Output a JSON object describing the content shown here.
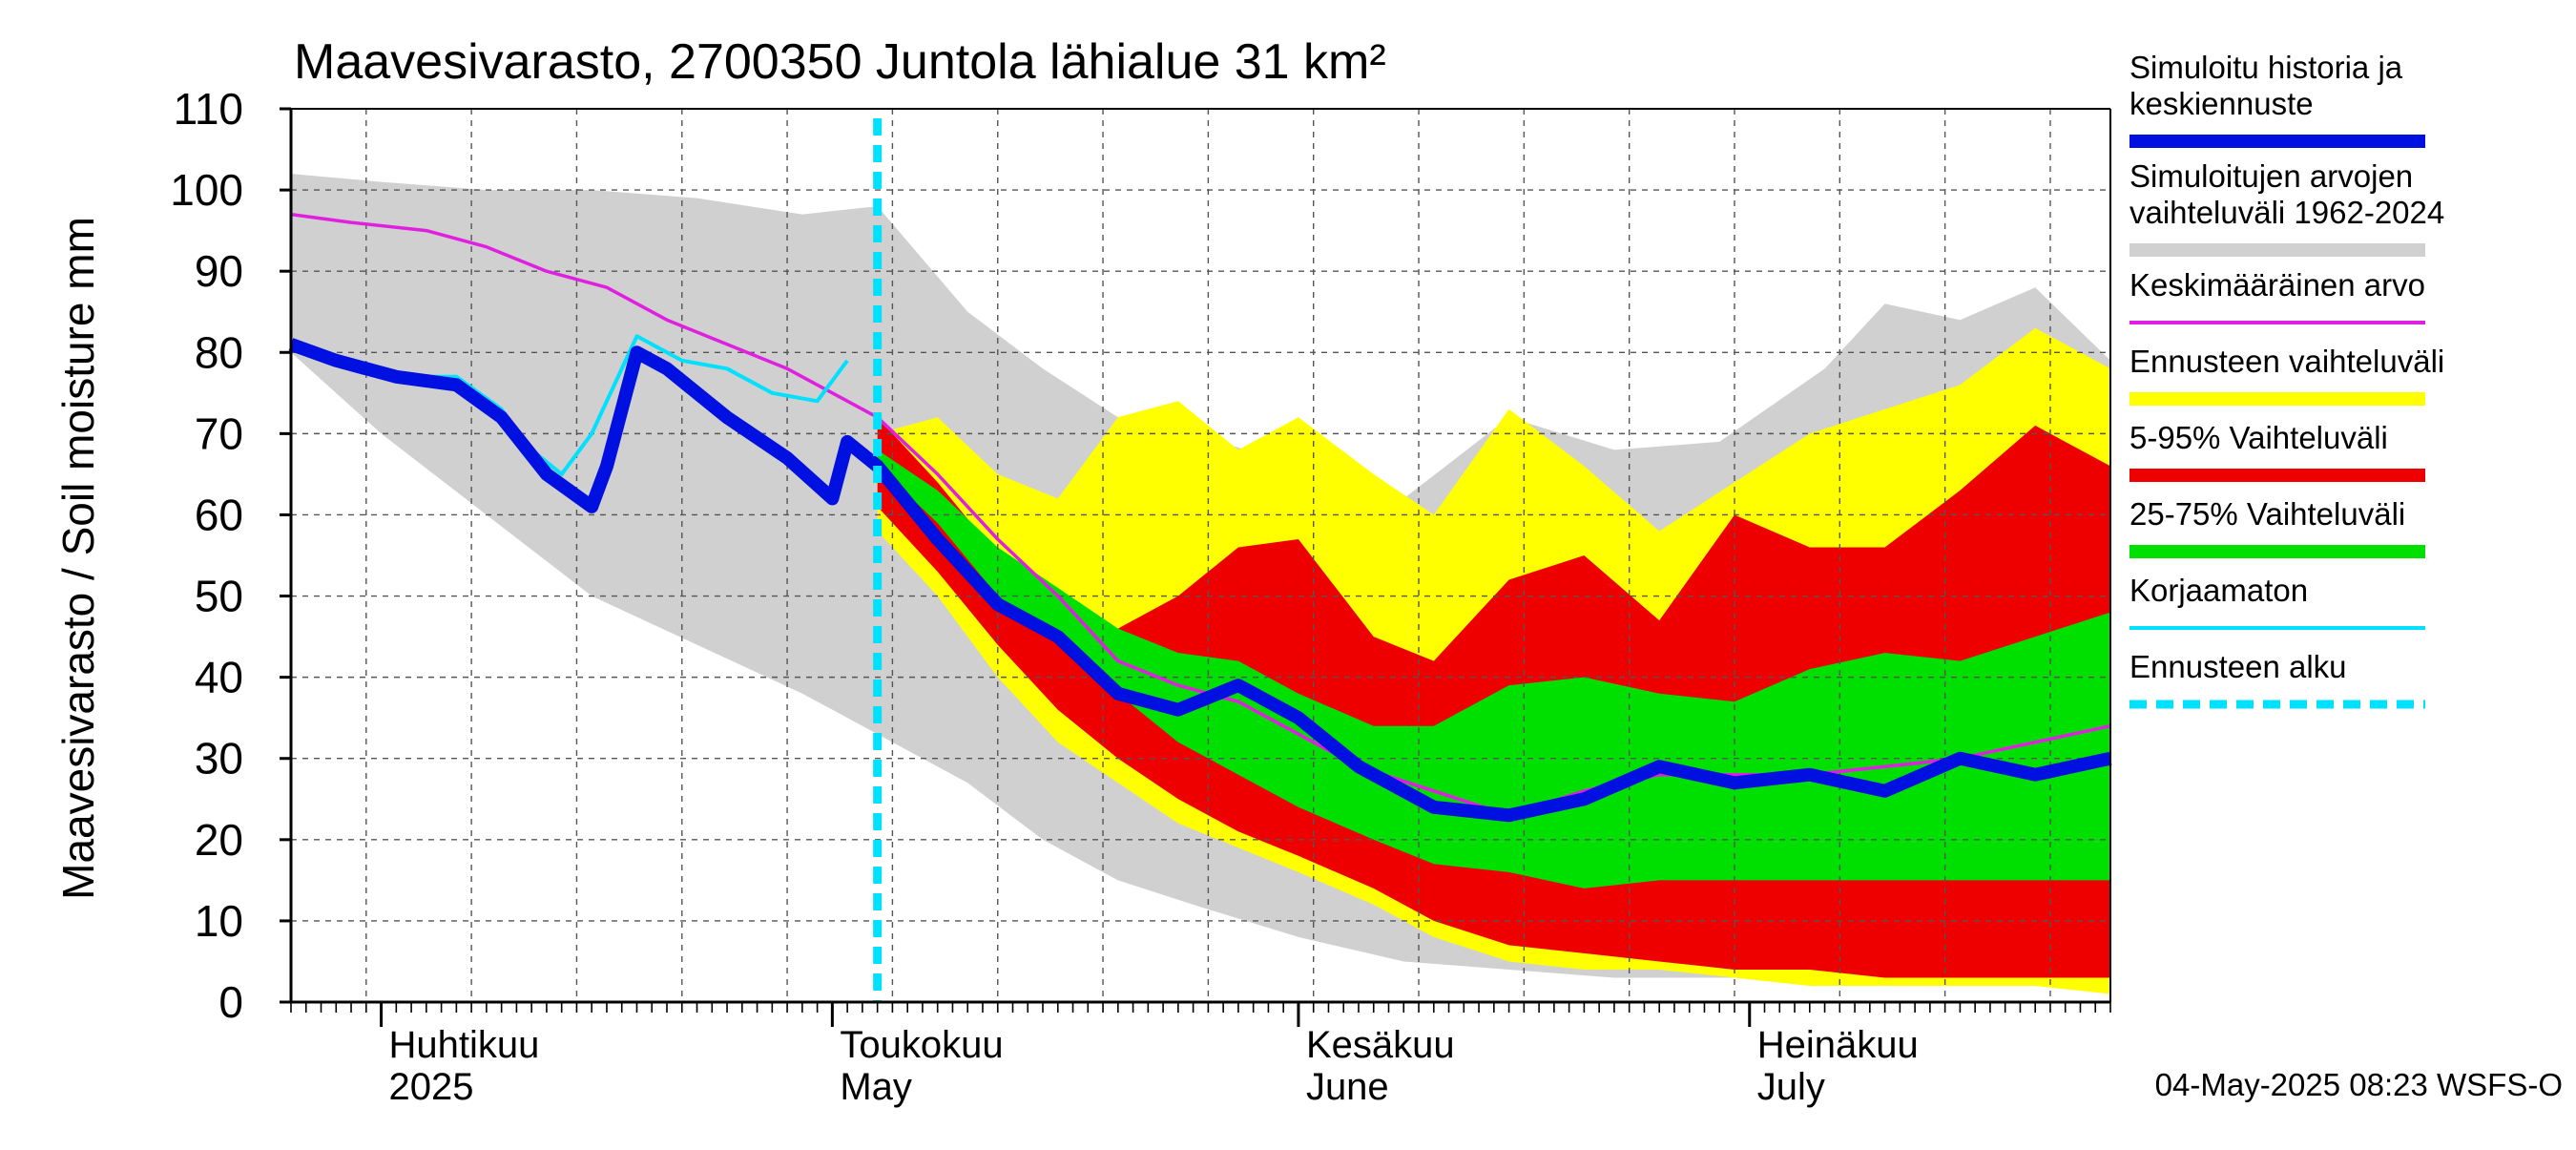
{
  "chart_data": {
    "type": "area",
    "title": "Maavesivarasto, 2700350 Juntola lähialue 31 km²",
    "ylabel": "Maavesivarasto / Soil moisture   mm",
    "ylim": [
      0,
      110
    ],
    "yticks": [
      0,
      10,
      20,
      30,
      40,
      50,
      60,
      70,
      80,
      90,
      100,
      110
    ],
    "xlim": [
      "2025-03-26",
      "2025-07-25"
    ],
    "grid": true,
    "legend_position": "right",
    "timestamp": "04-May-2025 08:23 WSFS-O",
    "x_labels": [
      {
        "date": "2025-04-01",
        "fi": "Huhtikuu",
        "en": "2025"
      },
      {
        "date": "2025-05-01",
        "fi": "Toukokuu",
        "en": "May"
      },
      {
        "date": "2025-06-01",
        "fi": "Kesäkuu",
        "en": "June"
      },
      {
        "date": "2025-07-01",
        "fi": "Heinäkuu",
        "en": "July"
      }
    ],
    "legend": [
      {
        "label": "Simuloitu historia ja keskiennuste",
        "color": "#0010e0",
        "style": "thick"
      },
      {
        "label": "Simuloitujen arvojen vaihteluväli 1962-2024",
        "color": "#d0d0d0",
        "style": "band"
      },
      {
        "label": "Keskimääräinen arvo",
        "color": "#e020e0",
        "style": "line"
      },
      {
        "label": "Ennusteen vaihteluväli",
        "color": "#ffff00",
        "style": "band"
      },
      {
        "label": "5-95% Vaihteluväli",
        "color": "#ee0000",
        "style": "band"
      },
      {
        "label": "25-75% Vaihteluväli",
        "color": "#00e000",
        "style": "band"
      },
      {
        "label": "Korjaamaton",
        "color": "#00e0ff",
        "style": "line"
      },
      {
        "label": "Ennusteen alku",
        "color": "#00e0ff",
        "style": "dashed"
      }
    ],
    "forecast_start": "2025-05-04",
    "series": [
      {
        "name": "Simuloitujen arvojen vaihteluväli 1962-2024",
        "kind": "band",
        "color": "#d0d0d0",
        "x": [
          "2025-03-26",
          "2025-04-01",
          "2025-04-08",
          "2025-04-15",
          "2025-04-22",
          "2025-04-29",
          "2025-05-04",
          "2025-05-10",
          "2025-05-15",
          "2025-05-20",
          "2025-05-25",
          "2025-06-01",
          "2025-06-08",
          "2025-06-15",
          "2025-06-22",
          "2025-06-29",
          "2025-07-06",
          "2025-07-10",
          "2025-07-15",
          "2025-07-20",
          "2025-07-25"
        ],
        "low": [
          80,
          70,
          60,
          50,
          44,
          38,
          33,
          27,
          20,
          15,
          12,
          8,
          5,
          4,
          3,
          3,
          3,
          3,
          3,
          3,
          3
        ],
        "high": [
          102,
          101,
          100,
          100,
          99,
          97,
          98,
          85,
          78,
          72,
          70,
          66,
          62,
          72,
          68,
          69,
          78,
          86,
          84,
          88,
          79
        ]
      },
      {
        "name": "Ennusteen vaihteluväli",
        "kind": "band",
        "color": "#ffff00",
        "x": [
          "2025-05-04",
          "2025-05-08",
          "2025-05-12",
          "2025-05-16",
          "2025-05-20",
          "2025-05-24",
          "2025-05-28",
          "2025-06-01",
          "2025-06-06",
          "2025-06-10",
          "2025-06-15",
          "2025-06-20",
          "2025-06-25",
          "2025-06-30",
          "2025-07-05",
          "2025-07-10",
          "2025-07-15",
          "2025-07-20",
          "2025-07-25"
        ],
        "low": [
          58,
          50,
          40,
          32,
          27,
          22,
          19,
          16,
          12,
          8,
          5,
          4,
          4,
          3,
          2,
          2,
          2,
          2,
          1
        ],
        "high": [
          70,
          72,
          65,
          62,
          72,
          74,
          68,
          72,
          65,
          60,
          73,
          66,
          58,
          64,
          70,
          73,
          76,
          83,
          78
        ]
      },
      {
        "name": "5-95% Vaihteluväli",
        "kind": "band",
        "color": "#ee0000",
        "x": [
          "2025-05-04",
          "2025-05-08",
          "2025-05-12",
          "2025-05-16",
          "2025-05-20",
          "2025-05-24",
          "2025-05-28",
          "2025-06-01",
          "2025-06-06",
          "2025-06-10",
          "2025-06-15",
          "2025-06-20",
          "2025-06-25",
          "2025-06-30",
          "2025-07-05",
          "2025-07-10",
          "2025-07-15",
          "2025-07-20",
          "2025-07-25"
        ],
        "low": [
          61,
          53,
          44,
          36,
          30,
          25,
          21,
          18,
          14,
          10,
          7,
          6,
          5,
          4,
          4,
          3,
          3,
          3,
          3
        ],
        "high": [
          72,
          64,
          55,
          48,
          46,
          50,
          56,
          57,
          45,
          42,
          52,
          55,
          47,
          60,
          56,
          56,
          63,
          71,
          66
        ]
      },
      {
        "name": "25-75% Vaihteluväli",
        "kind": "band",
        "color": "#00e000",
        "x": [
          "2025-05-04",
          "2025-05-08",
          "2025-05-12",
          "2025-05-16",
          "2025-05-20",
          "2025-05-24",
          "2025-05-28",
          "2025-06-01",
          "2025-06-06",
          "2025-06-10",
          "2025-06-15",
          "2025-06-20",
          "2025-06-25",
          "2025-06-30",
          "2025-07-05",
          "2025-07-10",
          "2025-07-15",
          "2025-07-20",
          "2025-07-25"
        ],
        "low": [
          66,
          59,
          50,
          44,
          38,
          32,
          28,
          24,
          20,
          17,
          16,
          14,
          15,
          15,
          15,
          15,
          15,
          15,
          15
        ],
        "high": [
          68,
          63,
          56,
          51,
          46,
          43,
          42,
          38,
          34,
          34,
          39,
          40,
          38,
          37,
          41,
          43,
          42,
          45,
          48
        ]
      },
      {
        "name": "Keskimääräinen arvo",
        "kind": "line",
        "color": "#e020e0",
        "x": [
          "2025-03-26",
          "2025-03-30",
          "2025-04-04",
          "2025-04-08",
          "2025-04-12",
          "2025-04-16",
          "2025-04-20",
          "2025-04-24",
          "2025-04-28",
          "2025-05-01",
          "2025-05-04",
          "2025-05-08",
          "2025-05-12",
          "2025-05-16",
          "2025-05-20",
          "2025-05-24",
          "2025-05-28",
          "2025-06-01",
          "2025-06-05",
          "2025-06-10",
          "2025-06-15",
          "2025-06-20",
          "2025-06-25",
          "2025-06-30",
          "2025-07-05",
          "2025-07-10",
          "2025-07-15",
          "2025-07-20",
          "2025-07-25"
        ],
        "y": [
          97,
          96,
          95,
          93,
          90,
          88,
          84,
          81,
          78,
          75,
          72,
          65,
          57,
          50,
          42,
          39,
          37,
          33,
          29,
          26,
          23,
          26,
          28,
          28,
          28,
          29,
          30,
          32,
          34
        ]
      },
      {
        "name": "Korjaamaton",
        "kind": "line",
        "color": "#00e0ff",
        "x": [
          "2025-03-26",
          "2025-03-29",
          "2025-04-02",
          "2025-04-06",
          "2025-04-09",
          "2025-04-11",
          "2025-04-13",
          "2025-04-15",
          "2025-04-18",
          "2025-04-21",
          "2025-04-24",
          "2025-04-27",
          "2025-04-30",
          "2025-05-02"
        ],
        "y": [
          81,
          79,
          77,
          77,
          73,
          68,
          65,
          70,
          82,
          79,
          78,
          75,
          74,
          79
        ]
      },
      {
        "name": "Simuloitu historia ja keskiennuste",
        "kind": "line",
        "color": "#0010e0",
        "x": [
          "2025-03-26",
          "2025-03-29",
          "2025-04-02",
          "2025-04-06",
          "2025-04-09",
          "2025-04-12",
          "2025-04-15",
          "2025-04-16",
          "2025-04-18",
          "2025-04-20",
          "2025-04-24",
          "2025-04-28",
          "2025-05-01",
          "2025-05-02",
          "2025-05-04",
          "2025-05-08",
          "2025-05-12",
          "2025-05-16",
          "2025-05-20",
          "2025-05-24",
          "2025-05-28",
          "2025-06-01",
          "2025-06-05",
          "2025-06-10",
          "2025-06-15",
          "2025-06-20",
          "2025-06-25",
          "2025-06-30",
          "2025-07-05",
          "2025-07-10",
          "2025-07-15",
          "2025-07-20",
          "2025-07-25"
        ],
        "y": [
          81,
          79,
          77,
          76,
          72,
          65,
          61,
          66,
          80,
          78,
          72,
          67,
          62,
          69,
          66,
          57,
          49,
          45,
          38,
          36,
          39,
          35,
          29,
          24,
          23,
          25,
          29,
          27,
          28,
          26,
          30,
          28,
          30
        ]
      }
    ]
  }
}
